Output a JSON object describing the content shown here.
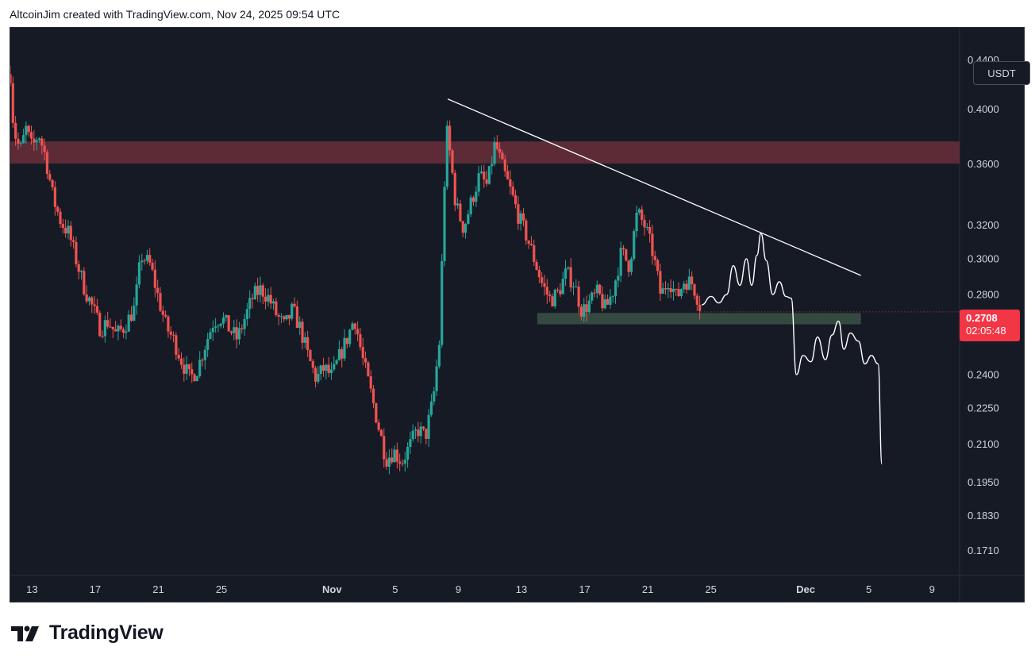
{
  "header": {
    "caption": "AltcoinJim created with TradingView.com, Nov 24, 2025 09:54 UTC"
  },
  "currency_label": "USDT",
  "current_price": {
    "price": "0.2708",
    "countdown": "02:05:48"
  },
  "footer": {
    "brand": "TradingView"
  },
  "colors": {
    "background": "#161a25",
    "up": "#26a69a",
    "down": "#ef5350",
    "resistance_zone": "#6e2f3b",
    "support_zone": "#3a5446",
    "trendline": "#ffffff",
    "price_tag": "#f23645"
  },
  "icons": {
    "logo": "tradingview-logo-icon"
  },
  "chart_data": {
    "type": "candlestick",
    "title": "",
    "symbol": "",
    "quote_currency": "USDT",
    "y_scale": "log",
    "y_ticks": [
      "0.4400",
      "0.4000",
      "0.3600",
      "0.3200",
      "0.3000",
      "0.2800",
      "0.2400",
      "0.2250",
      "0.2100",
      "0.1950",
      "0.1830",
      "0.1710"
    ],
    "x_ticks": [
      {
        "label": "13",
        "date": "2025-10-13"
      },
      {
        "label": "17",
        "date": "2025-10-17"
      },
      {
        "label": "21",
        "date": "2025-10-21"
      },
      {
        "label": "25",
        "date": "2025-10-25"
      },
      {
        "label": "Nov",
        "date": "2025-11-01"
      },
      {
        "label": "5",
        "date": "2025-11-05"
      },
      {
        "label": "9",
        "date": "2025-11-09"
      },
      {
        "label": "13",
        "date": "2025-11-13"
      },
      {
        "label": "17",
        "date": "2025-11-17"
      },
      {
        "label": "21",
        "date": "2025-11-21"
      },
      {
        "label": "25",
        "date": "2025-11-25"
      },
      {
        "label": "Dec",
        "date": "2025-12-01"
      },
      {
        "label": "5",
        "date": "2025-12-05"
      },
      {
        "label": "9",
        "date": "2025-12-09"
      }
    ],
    "ylim": [
      0.163,
      0.468
    ],
    "xlim": [
      "2025-10-11T15:00",
      "2025-12-10T18:00"
    ],
    "last_price": 0.2708,
    "price_path": [
      [
        "2025-10-11T15:00",
        0.428
      ],
      [
        "2025-10-11T20:00",
        0.385
      ],
      [
        "2025-10-12T06:00",
        0.369
      ],
      [
        "2025-10-12T15:00",
        0.385
      ],
      [
        "2025-10-13T00:00",
        0.371
      ],
      [
        "2025-10-13T10:00",
        0.382
      ],
      [
        "2025-10-13T20:00",
        0.366
      ],
      [
        "2025-10-14T08:00",
        0.337
      ],
      [
        "2025-10-14T20:00",
        0.322
      ],
      [
        "2025-10-15T08:00",
        0.315
      ],
      [
        "2025-10-15T20:00",
        0.298
      ],
      [
        "2025-10-16T08:00",
        0.283
      ],
      [
        "2025-10-16T20:00",
        0.273
      ],
      [
        "2025-10-17T08:00",
        0.262
      ],
      [
        "2025-10-17T20:00",
        0.266
      ],
      [
        "2025-10-18T08:00",
        0.259
      ],
      [
        "2025-10-18T20:00",
        0.263
      ],
      [
        "2025-10-19T12:00",
        0.273
      ],
      [
        "2025-10-19T22:00",
        0.302
      ],
      [
        "2025-10-20T12:00",
        0.296
      ],
      [
        "2025-10-21T00:00",
        0.278
      ],
      [
        "2025-10-21T12:00",
        0.263
      ],
      [
        "2025-10-22T00:00",
        0.256
      ],
      [
        "2025-10-22T12:00",
        0.246
      ],
      [
        "2025-10-23T00:00",
        0.238
      ],
      [
        "2025-10-23T12:00",
        0.243
      ],
      [
        "2025-10-24T00:00",
        0.255
      ],
      [
        "2025-10-24T12:00",
        0.266
      ],
      [
        "2025-10-25T00:00",
        0.268
      ],
      [
        "2025-10-25T12:00",
        0.262
      ],
      [
        "2025-10-26T00:00",
        0.257
      ],
      [
        "2025-10-26T12:00",
        0.268
      ],
      [
        "2025-10-27T00:00",
        0.279
      ],
      [
        "2025-10-27T12:00",
        0.283
      ],
      [
        "2025-10-28T00:00",
        0.278
      ],
      [
        "2025-10-28T12:00",
        0.269
      ],
      [
        "2025-10-29T00:00",
        0.263
      ],
      [
        "2025-10-29T12:00",
        0.272
      ],
      [
        "2025-10-30T00:00",
        0.262
      ],
      [
        "2025-10-30T12:00",
        0.248
      ],
      [
        "2025-10-31T00:00",
        0.238
      ],
      [
        "2025-10-31T12:00",
        0.243
      ],
      [
        "2025-11-01T00:00",
        0.239
      ],
      [
        "2025-11-01T12:00",
        0.249
      ],
      [
        "2025-11-02T00:00",
        0.258
      ],
      [
        "2025-11-02T10:00",
        0.268
      ],
      [
        "2025-11-02T22:00",
        0.248
      ],
      [
        "2025-11-03T10:00",
        0.233
      ],
      [
        "2025-11-03T22:00",
        0.218
      ],
      [
        "2025-11-04T10:00",
        0.204
      ],
      [
        "2025-11-04T22:00",
        0.207
      ],
      [
        "2025-11-05T10:00",
        0.203
      ],
      [
        "2025-11-05T22:00",
        0.209
      ],
      [
        "2025-11-06T10:00",
        0.216
      ],
      [
        "2025-11-06T22:00",
        0.213
      ],
      [
        "2025-11-07T10:00",
        0.229
      ],
      [
        "2025-11-07T20:00",
        0.258
      ],
      [
        "2025-11-08T02:00",
        0.335
      ],
      [
        "2025-11-08T06:00",
        0.385
      ],
      [
        "2025-11-08T12:00",
        0.365
      ],
      [
        "2025-11-08T20:00",
        0.333
      ],
      [
        "2025-11-09T08:00",
        0.318
      ],
      [
        "2025-11-09T20:00",
        0.335
      ],
      [
        "2025-11-10T08:00",
        0.352
      ],
      [
        "2025-11-10T20:00",
        0.345
      ],
      [
        "2025-11-11T08:00",
        0.375
      ],
      [
        "2025-11-11T20:00",
        0.356
      ],
      [
        "2025-11-12T08:00",
        0.341
      ],
      [
        "2025-11-12T20:00",
        0.325
      ],
      [
        "2025-11-13T08:00",
        0.313
      ],
      [
        "2025-11-13T20:00",
        0.299
      ],
      [
        "2025-11-14T08:00",
        0.285
      ],
      [
        "2025-11-14T20:00",
        0.277
      ],
      [
        "2025-11-15T08:00",
        0.281
      ],
      [
        "2025-11-15T20:00",
        0.292
      ],
      [
        "2025-11-16T08:00",
        0.286
      ],
      [
        "2025-11-16T20:00",
        0.271
      ],
      [
        "2025-11-17T08:00",
        0.276
      ],
      [
        "2025-11-17T20:00",
        0.281
      ],
      [
        "2025-11-18T08:00",
        0.272
      ],
      [
        "2025-11-18T20:00",
        0.283
      ],
      [
        "2025-11-19T08:00",
        0.304
      ],
      [
        "2025-11-19T20:00",
        0.296
      ],
      [
        "2025-11-20T08:00",
        0.328
      ],
      [
        "2025-11-20T20:00",
        0.319
      ],
      [
        "2025-11-21T08:00",
        0.303
      ],
      [
        "2025-11-21T20:00",
        0.279
      ],
      [
        "2025-11-22T08:00",
        0.289
      ],
      [
        "2025-11-22T20:00",
        0.278
      ],
      [
        "2025-11-23T08:00",
        0.288
      ],
      [
        "2025-11-23T20:00",
        0.286
      ],
      [
        "2025-11-24T06:00",
        0.276
      ],
      [
        "2025-11-24T09:00",
        0.2708
      ]
    ],
    "zones": [
      {
        "kind": "resistance",
        "from": 0.3603,
        "to": 0.376,
        "start": "2025-10-11T15:00",
        "end": "2025-12-10T18:00"
      },
      {
        "kind": "support",
        "from": 0.2644,
        "to": 0.2702,
        "start": "2025-11-14T00:00",
        "end": "2025-12-04T12:00"
      }
    ],
    "trendline": [
      [
        "2025-11-08T08:00",
        0.408
      ],
      [
        "2025-12-04T12:00",
        0.2905
      ]
    ],
    "projection": [
      [
        "2025-11-24T10:00",
        0.2745
      ],
      [
        "2025-11-25T00:00",
        0.279
      ],
      [
        "2025-11-25T12:00",
        0.2755
      ],
      [
        "2025-11-26T00:00",
        0.28
      ],
      [
        "2025-11-26T10:00",
        0.296
      ],
      [
        "2025-11-26T20:00",
        0.285
      ],
      [
        "2025-11-27T06:00",
        0.3
      ],
      [
        "2025-11-27T14:00",
        0.285
      ],
      [
        "2025-11-27T22:00",
        0.302
      ],
      [
        "2025-11-28T04:00",
        0.315
      ],
      [
        "2025-11-28T12:00",
        0.299
      ],
      [
        "2025-11-28T22:00",
        0.28
      ],
      [
        "2025-11-29T08:00",
        0.287
      ],
      [
        "2025-11-29T18:00",
        0.279
      ],
      [
        "2025-11-30T02:00",
        0.278
      ],
      [
        "2025-11-30T10:00",
        0.24
      ],
      [
        "2025-11-30T20:00",
        0.249
      ],
      [
        "2025-12-01T08:00",
        0.246
      ],
      [
        "2025-12-01T18:00",
        0.258
      ],
      [
        "2025-12-02T06:00",
        0.247
      ],
      [
        "2025-12-02T16:00",
        0.259
      ],
      [
        "2025-12-03T02:00",
        0.266
      ],
      [
        "2025-12-03T10:00",
        0.252
      ],
      [
        "2025-12-03T20:00",
        0.26
      ],
      [
        "2025-12-04T08:00",
        0.256
      ],
      [
        "2025-12-04T18:00",
        0.245
      ],
      [
        "2025-12-05T04:00",
        0.249
      ],
      [
        "2025-12-05T14:00",
        0.245
      ],
      [
        "2025-12-05T20:00",
        0.202
      ]
    ]
  }
}
